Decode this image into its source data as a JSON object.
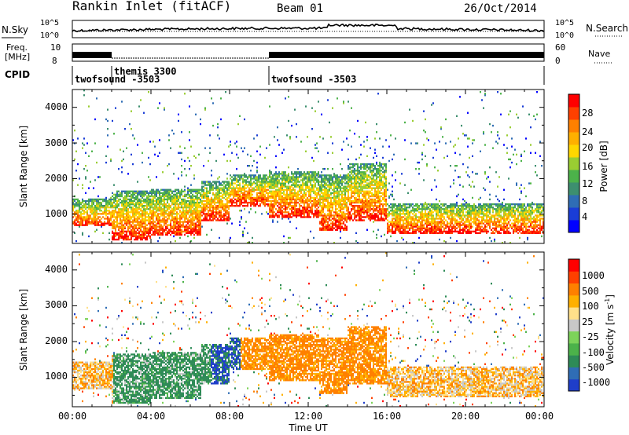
{
  "header": {
    "station": "Rankin Inlet (fitACF)",
    "beam": "Beam 01",
    "date": "26/Oct/2014"
  },
  "noise_panel": {
    "left_label": "N.Sky",
    "left_ticks": [
      "10^5",
      "10^0"
    ],
    "right_ticks": [
      "10^5",
      "10^0"
    ],
    "right_label": "N.Search"
  },
  "freq_panel": {
    "left_label_1": "Freq.",
    "left_label_2": "[MHz]",
    "left_ticks": [
      "10",
      "8"
    ],
    "right_ticks": [
      "60",
      "0"
    ],
    "right_label": "Nave"
  },
  "cpid_panel": {
    "label": "CPID",
    "segments": [
      {
        "name": "twofsound -3503",
        "start_hour": 0,
        "end_hour": 2
      },
      {
        "name": "themis 3300",
        "start_hour": 2,
        "end_hour": 10
      },
      {
        "name": "twofsound -3503",
        "start_hour": 10,
        "end_hour": 24
      }
    ]
  },
  "chart_data": [
    {
      "type": "heatmap",
      "parameter": "Power",
      "ylabel": "Slant Range [km]",
      "ylim": [
        180,
        4500
      ],
      "y_ticks": [
        "1000",
        "2000",
        "3000",
        "4000"
      ],
      "xlim": [
        "00:00",
        "24:00"
      ],
      "colorbar": {
        "label": "Power [dB]",
        "ticks": [
          "28",
          "24",
          "20",
          "16",
          "12",
          "8",
          "4"
        ],
        "colors": [
          "#0000ff",
          "#1a3dd6",
          "#2f6db5",
          "#3d8f6f",
          "#4cb24a",
          "#9acd32",
          "#ffd700",
          "#ffb000",
          "#ff8000",
          "#ff4000",
          "#ff0000"
        ]
      }
    },
    {
      "type": "heatmap",
      "parameter": "Velocity",
      "ylabel": "Slant Range [km]",
      "ylim": [
        180,
        4500
      ],
      "y_ticks": [
        "1000",
        "2000",
        "3000",
        "4000"
      ],
      "xlim": [
        "00:00",
        "24:00"
      ],
      "colorbar": {
        "label": "Velocity [m s",
        "label_sup": "-1",
        "label_end": "]",
        "ticks": [
          "1000",
          "500",
          "100",
          "25",
          "-25",
          "-100",
          "-500",
          "-1000"
        ],
        "colors": [
          "#1f3ec9",
          "#2f6db5",
          "#2e8b57",
          "#4cb24a",
          "#7dd35a",
          "#c8c8c8",
          "#ffe08a",
          "#ffb000",
          "#ff8000",
          "#ff4000",
          "#ff0000"
        ]
      }
    }
  ],
  "x_axis": {
    "ticks": [
      "00:00",
      "04:00",
      "08:00",
      "12:00",
      "16:00",
      "20:00",
      "00:00"
    ],
    "label": "Time UT"
  }
}
